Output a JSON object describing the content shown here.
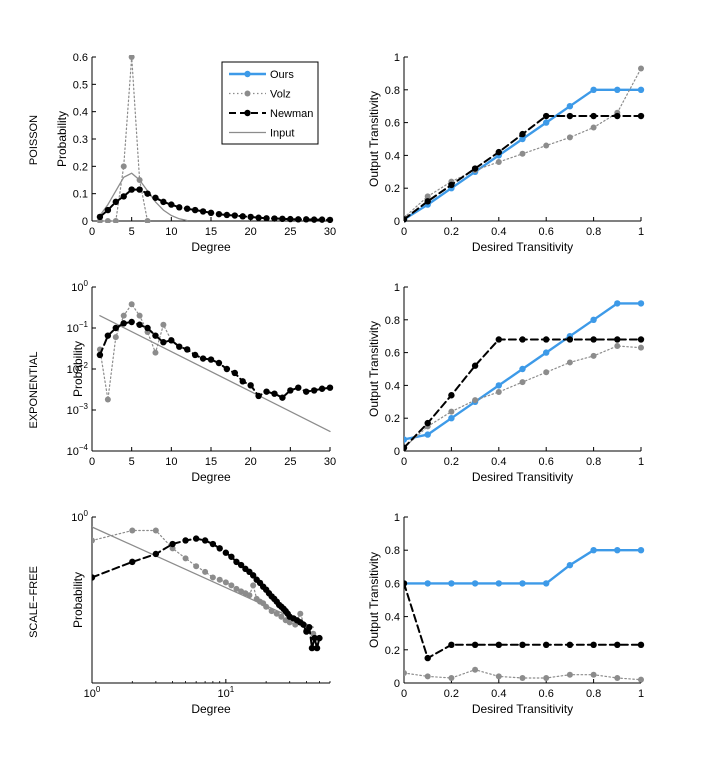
{
  "colors": {
    "ours": "#3d9ae8",
    "volz": "#8c8c8c",
    "newman": "#000000",
    "input": "#8c8c8c",
    "axis": "#000000"
  },
  "row_labels": [
    "POISSON",
    "EXPONENTIAL",
    "SCALE−FREE"
  ],
  "legend": {
    "entries": [
      {
        "name": "Ours",
        "series": "ours"
      },
      {
        "name": "Volz",
        "series": "volz"
      },
      {
        "name": "Newman",
        "series": "newman"
      },
      {
        "name": "Input",
        "series": "input"
      }
    ]
  },
  "chart_data": [
    {
      "id": "poisson-degree",
      "type": "line",
      "row": "POISSON",
      "xlabel": "Degree",
      "ylabel": "Probability",
      "xscale": "linear",
      "yscale": "linear",
      "xlim": [
        0,
        30
      ],
      "ylim": [
        0,
        0.6
      ],
      "xticks": [
        0,
        5,
        10,
        15,
        20,
        25,
        30
      ],
      "xticklabels": [
        "0",
        "5",
        "10",
        "15",
        "20",
        "25",
        "30"
      ],
      "yticks": [
        0,
        0.1,
        0.2,
        0.3,
        0.4,
        0.5,
        0.6
      ],
      "yticklabels": [
        "0",
        "0.1",
        "0.2",
        "0.3",
        "0.4",
        "0.5",
        "0.6"
      ],
      "series": [
        {
          "name": "Input",
          "key": "input",
          "style": "solid",
          "marker": false,
          "x": [
            1,
            2,
            3,
            4,
            5,
            6,
            7,
            8,
            9,
            10,
            11,
            12
          ],
          "y": [
            0.02,
            0.06,
            0.11,
            0.16,
            0.175,
            0.15,
            0.11,
            0.07,
            0.04,
            0.02,
            0.008,
            0.002
          ]
        },
        {
          "name": "Volz",
          "key": "volz",
          "style": "dotted",
          "marker": true,
          "x": [
            1,
            2,
            3,
            4,
            5,
            6,
            7
          ],
          "y": [
            0.0,
            0.0,
            0.0,
            0.2,
            0.6,
            0.15,
            0.0
          ]
        },
        {
          "name": "Newman",
          "key": "newman",
          "style": "dashed",
          "marker": true,
          "x": [
            1,
            2,
            3,
            4,
            5,
            6,
            7,
            8,
            9,
            10,
            11,
            12,
            13,
            14,
            15,
            16,
            17,
            18,
            19,
            20,
            21,
            22,
            23,
            24,
            25,
            26,
            27,
            28,
            29,
            30
          ],
          "y": [
            0.015,
            0.04,
            0.07,
            0.09,
            0.115,
            0.115,
            0.1,
            0.085,
            0.07,
            0.06,
            0.05,
            0.045,
            0.04,
            0.035,
            0.03,
            0.025,
            0.022,
            0.02,
            0.017,
            0.015,
            0.012,
            0.01,
            0.009,
            0.008,
            0.007,
            0.006,
            0.006,
            0.005,
            0.005,
            0.004
          ]
        }
      ]
    },
    {
      "id": "poisson-transitivity",
      "type": "line",
      "row": "POISSON",
      "xlabel": "Desired Transitivity",
      "ylabel": "Output Transitivity",
      "xscale": "linear",
      "yscale": "linear",
      "xlim": [
        0,
        1
      ],
      "ylim": [
        0,
        1
      ],
      "xticks": [
        0,
        0.2,
        0.4,
        0.6,
        0.8,
        1
      ],
      "xticklabels": [
        "0",
        "0.2",
        "0.4",
        "0.6",
        "0.8",
        "1"
      ],
      "yticks": [
        0,
        0.2,
        0.4,
        0.6,
        0.8,
        1
      ],
      "yticklabels": [
        "0",
        "0.2",
        "0.4",
        "0.6",
        "0.8",
        "1"
      ],
      "series": [
        {
          "name": "Ours",
          "key": "ours",
          "style": "solid",
          "marker": true,
          "x": [
            0,
            0.1,
            0.2,
            0.3,
            0.4,
            0.5,
            0.6,
            0.7,
            0.8,
            0.9,
            1.0
          ],
          "y": [
            0.01,
            0.1,
            0.2,
            0.3,
            0.4,
            0.5,
            0.6,
            0.7,
            0.8,
            0.8,
            0.8
          ]
        },
        {
          "name": "Volz",
          "key": "volz",
          "style": "dotted",
          "marker": true,
          "x": [
            0,
            0.1,
            0.2,
            0.3,
            0.4,
            0.5,
            0.6,
            0.7,
            0.8,
            0.9,
            1.0
          ],
          "y": [
            0.02,
            0.15,
            0.24,
            0.31,
            0.36,
            0.41,
            0.46,
            0.51,
            0.57,
            0.66,
            0.93
          ]
        },
        {
          "name": "Newman",
          "key": "newman",
          "style": "dashed",
          "marker": true,
          "x": [
            0,
            0.1,
            0.2,
            0.3,
            0.4,
            0.5,
            0.6,
            0.7,
            0.8,
            0.9,
            1.0
          ],
          "y": [
            0.01,
            0.12,
            0.22,
            0.32,
            0.42,
            0.53,
            0.64,
            0.64,
            0.64,
            0.64,
            0.64
          ]
        }
      ]
    },
    {
      "id": "exponential-degree",
      "type": "line",
      "row": "EXPONENTIAL",
      "xlabel": "Degree",
      "ylabel": "Probability",
      "xscale": "linear",
      "yscale": "log",
      "xlim": [
        0,
        30
      ],
      "ylim": [
        0.0001,
        1
      ],
      "xticks": [
        0,
        5,
        10,
        15,
        20,
        25,
        30
      ],
      "xticklabels": [
        "0",
        "5",
        "10",
        "15",
        "20",
        "25",
        "30"
      ],
      "yticks": [
        0.0001,
        0.001,
        0.01,
        0.1,
        1
      ],
      "ytick_base": "10",
      "ytick_exponents": [
        "−4",
        "−3",
        "−2",
        "−1",
        "0"
      ],
      "series": [
        {
          "name": "Input",
          "key": "input",
          "style": "solid",
          "marker": false,
          "x": [
            1,
            30
          ],
          "y": [
            0.2,
            0.0003
          ]
        },
        {
          "name": "Volz",
          "key": "volz",
          "style": "dotted",
          "marker": true,
          "x": [
            1,
            2,
            3,
            4,
            5,
            6,
            7,
            8,
            9,
            10
          ],
          "y": [
            0.03,
            0.0018,
            0.06,
            0.2,
            0.38,
            0.2,
            0.08,
            0.025,
            0.12,
            0.05
          ]
        },
        {
          "name": "Newman",
          "key": "newman",
          "style": "dashed",
          "marker": true,
          "x": [
            1,
            2,
            3,
            4,
            5,
            6,
            7,
            8,
            9,
            10,
            11,
            12,
            13,
            14,
            15,
            16,
            17,
            18,
            19,
            20,
            21,
            22,
            23,
            24,
            25,
            26,
            27,
            28,
            29,
            30
          ],
          "y": [
            0.022,
            0.065,
            0.1,
            0.13,
            0.14,
            0.12,
            0.1,
            0.065,
            0.045,
            0.05,
            0.035,
            0.03,
            0.022,
            0.018,
            0.017,
            0.014,
            0.01,
            0.008,
            0.005,
            0.004,
            0.0022,
            0.0028,
            0.0025,
            0.002,
            0.003,
            0.0035,
            0.0028,
            0.003,
            0.0033,
            0.0035
          ]
        }
      ]
    },
    {
      "id": "exponential-transitivity",
      "type": "line",
      "row": "EXPONENTIAL",
      "xlabel": "Desired Transitivity",
      "ylabel": "Output Transitivity",
      "xscale": "linear",
      "yscale": "linear",
      "xlim": [
        0,
        1
      ],
      "ylim": [
        0,
        1
      ],
      "xticks": [
        0,
        0.2,
        0.4,
        0.6,
        0.8,
        1
      ],
      "xticklabels": [
        "0",
        "0.2",
        "0.4",
        "0.6",
        "0.8",
        "1"
      ],
      "yticks": [
        0,
        0.2,
        0.4,
        0.6,
        0.8,
        1
      ],
      "yticklabels": [
        "0",
        "0.2",
        "0.4",
        "0.6",
        "0.8",
        "1"
      ],
      "series": [
        {
          "name": "Ours",
          "key": "ours",
          "style": "solid",
          "marker": true,
          "x": [
            0,
            0.1,
            0.2,
            0.3,
            0.4,
            0.5,
            0.6,
            0.7,
            0.8,
            0.9,
            1.0
          ],
          "y": [
            0.07,
            0.1,
            0.2,
            0.3,
            0.4,
            0.5,
            0.6,
            0.7,
            0.8,
            0.9,
            0.9
          ]
        },
        {
          "name": "Volz",
          "key": "volz",
          "style": "dotted",
          "marker": true,
          "x": [
            0,
            0.1,
            0.2,
            0.3,
            0.4,
            0.5,
            0.6,
            0.7,
            0.8,
            0.9,
            1.0
          ],
          "y": [
            0.02,
            0.15,
            0.24,
            0.31,
            0.36,
            0.42,
            0.48,
            0.54,
            0.58,
            0.64,
            0.63
          ]
        },
        {
          "name": "Newman",
          "key": "newman",
          "style": "dashed",
          "marker": true,
          "x": [
            0,
            0.1,
            0.2,
            0.3,
            0.4,
            0.5,
            0.6,
            0.7,
            0.8,
            0.9,
            1.0
          ],
          "y": [
            0.02,
            0.17,
            0.34,
            0.52,
            0.68,
            0.68,
            0.68,
            0.68,
            0.68,
            0.68,
            0.68
          ]
        }
      ]
    },
    {
      "id": "scalefree-degree",
      "type": "line",
      "row": "SCALE−FREE",
      "xlabel": "Degree",
      "ylabel": "Probability",
      "xscale": "log",
      "yscale": "log",
      "xlim": [
        1,
        60
      ],
      "ylim": [
        0.0002,
        1
      ],
      "xticks": [
        1,
        10
      ],
      "xtick_base": "10",
      "xtick_exponents": [
        "0",
        "1"
      ],
      "yticks": [
        1
      ],
      "ytick_base": "10",
      "ytick_exponents": [
        "0"
      ],
      "series": [
        {
          "name": "Input",
          "key": "input",
          "style": "solid",
          "marker": false,
          "x": [
            1,
            45
          ],
          "y": [
            0.6,
            0.0035
          ]
        },
        {
          "name": "Volz",
          "key": "volz",
          "style": "dotted",
          "marker": true,
          "x": [
            1,
            2,
            3,
            4,
            5,
            6,
            7,
            8,
            9,
            10,
            11,
            12,
            13,
            14,
            15,
            16,
            17,
            18,
            19,
            20,
            22,
            24,
            26,
            28,
            30,
            33,
            36,
            40,
            45,
            50
          ],
          "y": [
            0.3,
            0.5,
            0.5,
            0.2,
            0.12,
            0.08,
            0.06,
            0.045,
            0.04,
            0.035,
            0.03,
            0.025,
            0.022,
            0.02,
            0.018,
            0.03,
            0.015,
            0.013,
            0.012,
            0.01,
            0.008,
            0.007,
            0.006,
            0.005,
            0.0045,
            0.004,
            0.007,
            0.003,
            0.0025,
            0.002
          ]
        },
        {
          "name": "Newman",
          "key": "newman",
          "style": "dashed",
          "marker": true,
          "x": [
            1,
            2,
            3,
            4,
            5,
            6,
            7,
            8,
            9,
            10,
            11,
            12,
            13,
            14,
            15,
            16,
            17,
            18,
            19,
            20,
            21,
            22,
            23,
            24,
            25,
            26,
            27,
            28,
            29,
            30,
            32,
            34,
            36,
            38,
            40,
            42,
            44,
            46,
            48,
            50
          ],
          "y": [
            0.045,
            0.1,
            0.15,
            0.25,
            0.3,
            0.33,
            0.3,
            0.25,
            0.2,
            0.16,
            0.13,
            0.1,
            0.085,
            0.07,
            0.06,
            0.05,
            0.04,
            0.034,
            0.028,
            0.024,
            0.02,
            0.017,
            0.015,
            0.013,
            0.011,
            0.01,
            0.009,
            0.008,
            0.007,
            0.006,
            0.0055,
            0.005,
            0.0045,
            0.004,
            0.0028,
            0.0035,
            0.0012,
            0.002,
            0.0012,
            0.002
          ]
        }
      ]
    },
    {
      "id": "scalefree-transitivity",
      "type": "line",
      "row": "SCALE−FREE",
      "xlabel": "Desired Transitivity",
      "ylabel": "Output Transitivity",
      "xscale": "linear",
      "yscale": "linear",
      "xlim": [
        0,
        1
      ],
      "ylim": [
        0,
        1
      ],
      "xticks": [
        0,
        0.2,
        0.4,
        0.6,
        0.8,
        1
      ],
      "xticklabels": [
        "0",
        "0.2",
        "0.4",
        "0.6",
        "0.8",
        "1"
      ],
      "yticks": [
        0,
        0.2,
        0.4,
        0.6,
        0.8,
        1
      ],
      "yticklabels": [
        "0",
        "0.2",
        "0.4",
        "0.6",
        "0.8",
        "1"
      ],
      "series": [
        {
          "name": "Ours",
          "key": "ours",
          "style": "solid",
          "marker": true,
          "x": [
            0,
            0.1,
            0.2,
            0.3,
            0.4,
            0.5,
            0.6,
            0.7,
            0.8,
            0.9,
            1.0
          ],
          "y": [
            0.6,
            0.6,
            0.6,
            0.6,
            0.6,
            0.6,
            0.6,
            0.71,
            0.8,
            0.8,
            0.8
          ]
        },
        {
          "name": "Volz",
          "key": "volz",
          "style": "dotted",
          "marker": true,
          "x": [
            0,
            0.1,
            0.2,
            0.3,
            0.4,
            0.5,
            0.6,
            0.7,
            0.8,
            0.9,
            1.0
          ],
          "y": [
            0.06,
            0.04,
            0.03,
            0.08,
            0.04,
            0.03,
            0.03,
            0.05,
            0.05,
            0.03,
            0.02
          ]
        },
        {
          "name": "Newman",
          "key": "newman",
          "style": "dashed",
          "marker": true,
          "x": [
            0,
            0.1,
            0.2,
            0.3,
            0.4,
            0.5,
            0.6,
            0.7,
            0.8,
            0.9,
            1.0
          ],
          "y": [
            0.6,
            0.15,
            0.23,
            0.23,
            0.23,
            0.23,
            0.23,
            0.23,
            0.23,
            0.23,
            0.23
          ]
        }
      ]
    }
  ]
}
